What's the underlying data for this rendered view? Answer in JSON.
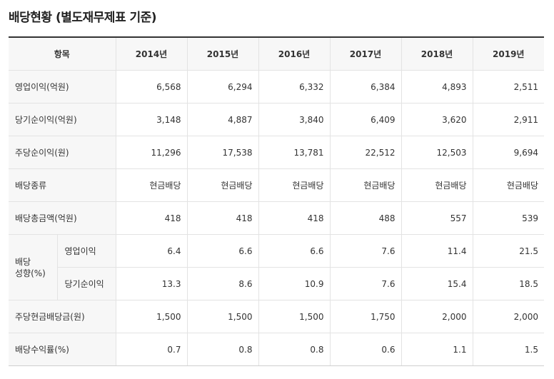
{
  "title": "배당현황 (별도재무제표 기준)",
  "header": {
    "item_label": "항목",
    "years": [
      "2014년",
      "2015년",
      "2016년",
      "2017년",
      "2018년",
      "2019년"
    ]
  },
  "rows": {
    "operating_profit": {
      "label": "영업이익(억원)",
      "values": [
        "6,568",
        "6,294",
        "6,332",
        "6,384",
        "4,893",
        "2,511"
      ]
    },
    "net_income": {
      "label": "당기순이익(억원)",
      "values": [
        "3,148",
        "4,887",
        "3,840",
        "6,409",
        "3,620",
        "2,911"
      ]
    },
    "eps": {
      "label": "주당순이익(원)",
      "values": [
        "11,296",
        "17,538",
        "13,781",
        "22,512",
        "12,503",
        "9,694"
      ]
    },
    "dividend_type": {
      "label": "배당종류",
      "values": [
        "현금배당",
        "현금배당",
        "현금배당",
        "현금배당",
        "현금배당",
        "현금배당"
      ]
    },
    "total_dividend": {
      "label": "배당총금액(억원)",
      "values": [
        "418",
        "418",
        "418",
        "488",
        "557",
        "539"
      ]
    },
    "payout": {
      "label_line1": "배당",
      "label_line2": "성향(%)",
      "operating": {
        "label": "영업이익",
        "values": [
          "6.4",
          "6.6",
          "6.6",
          "7.6",
          "11.4",
          "21.5"
        ]
      },
      "net": {
        "label": "당기순이익",
        "values": [
          "13.3",
          "8.6",
          "10.9",
          "7.6",
          "15.4",
          "18.5"
        ]
      }
    },
    "dps": {
      "label": "주당현금배당금(원)",
      "values": [
        "1,500",
        "1,500",
        "1,500",
        "1,750",
        "2,000",
        "2,000"
      ]
    },
    "yield": {
      "label": "배당수익률(%)",
      "values": [
        "0.7",
        "0.8",
        "0.8",
        "0.6",
        "1.1",
        "1.5"
      ]
    }
  }
}
